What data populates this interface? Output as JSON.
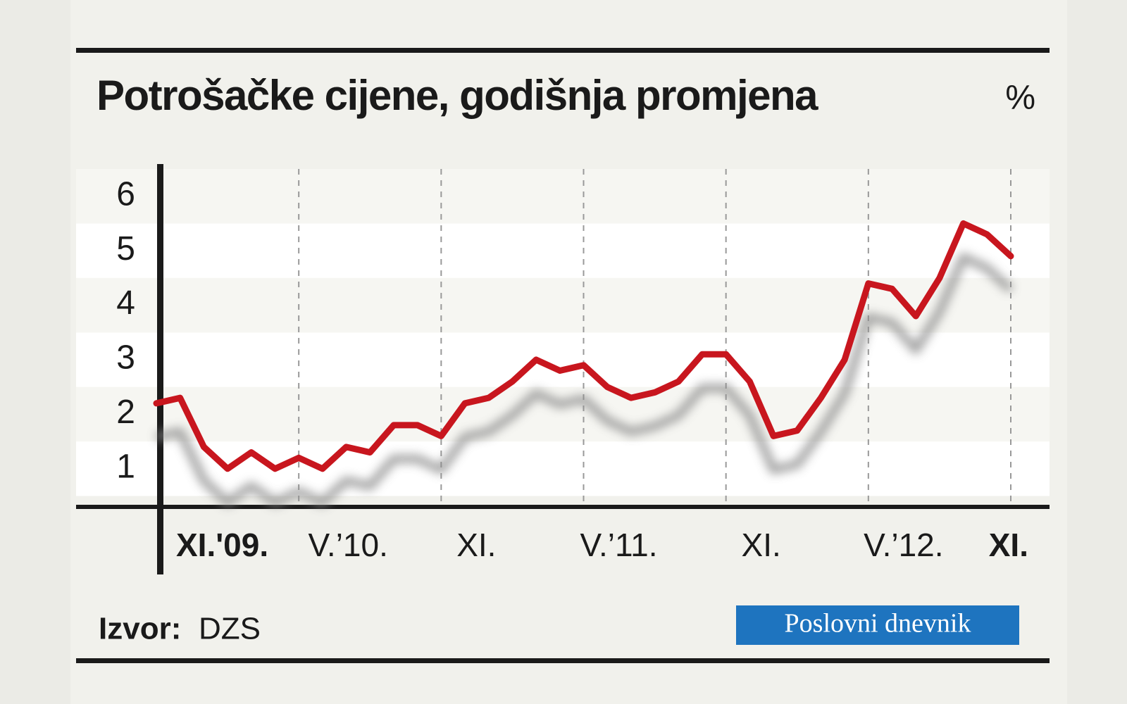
{
  "chart_data": {
    "type": "line",
    "title": "Potrošačke cijene, godišnja promjena",
    "unit": "%",
    "categories": [
      "XI.'09.",
      null,
      null,
      null,
      null,
      null,
      "V.’10.",
      null,
      null,
      null,
      null,
      null,
      "XI.",
      null,
      null,
      null,
      null,
      null,
      "V.’11.",
      null,
      null,
      null,
      null,
      null,
      "XI.",
      null,
      null,
      null,
      null,
      null,
      "V.’12.",
      null,
      null,
      null,
      null,
      null,
      "XI."
    ],
    "series": [
      {
        "color": "#c8161e",
        "values": [
          2.2,
          2.3,
          1.4,
          1.0,
          1.3,
          1.0,
          1.2,
          1.0,
          1.4,
          1.3,
          1.8,
          1.8,
          1.6,
          2.2,
          2.3,
          2.6,
          3.0,
          2.8,
          2.9,
          2.5,
          2.3,
          2.4,
          2.6,
          3.1,
          3.1,
          2.6,
          1.6,
          1.7,
          2.3,
          3.0,
          4.4,
          4.3,
          3.8,
          4.5,
          5.5,
          5.3,
          4.9
        ]
      }
    ],
    "ylim": [
      0.3,
      6.5
    ],
    "yticks": [
      1,
      2,
      3,
      4,
      5,
      6
    ],
    "grid": true,
    "source_label": "Izvor:",
    "source": "DZS",
    "brand": "Poslovni dnevnik"
  }
}
